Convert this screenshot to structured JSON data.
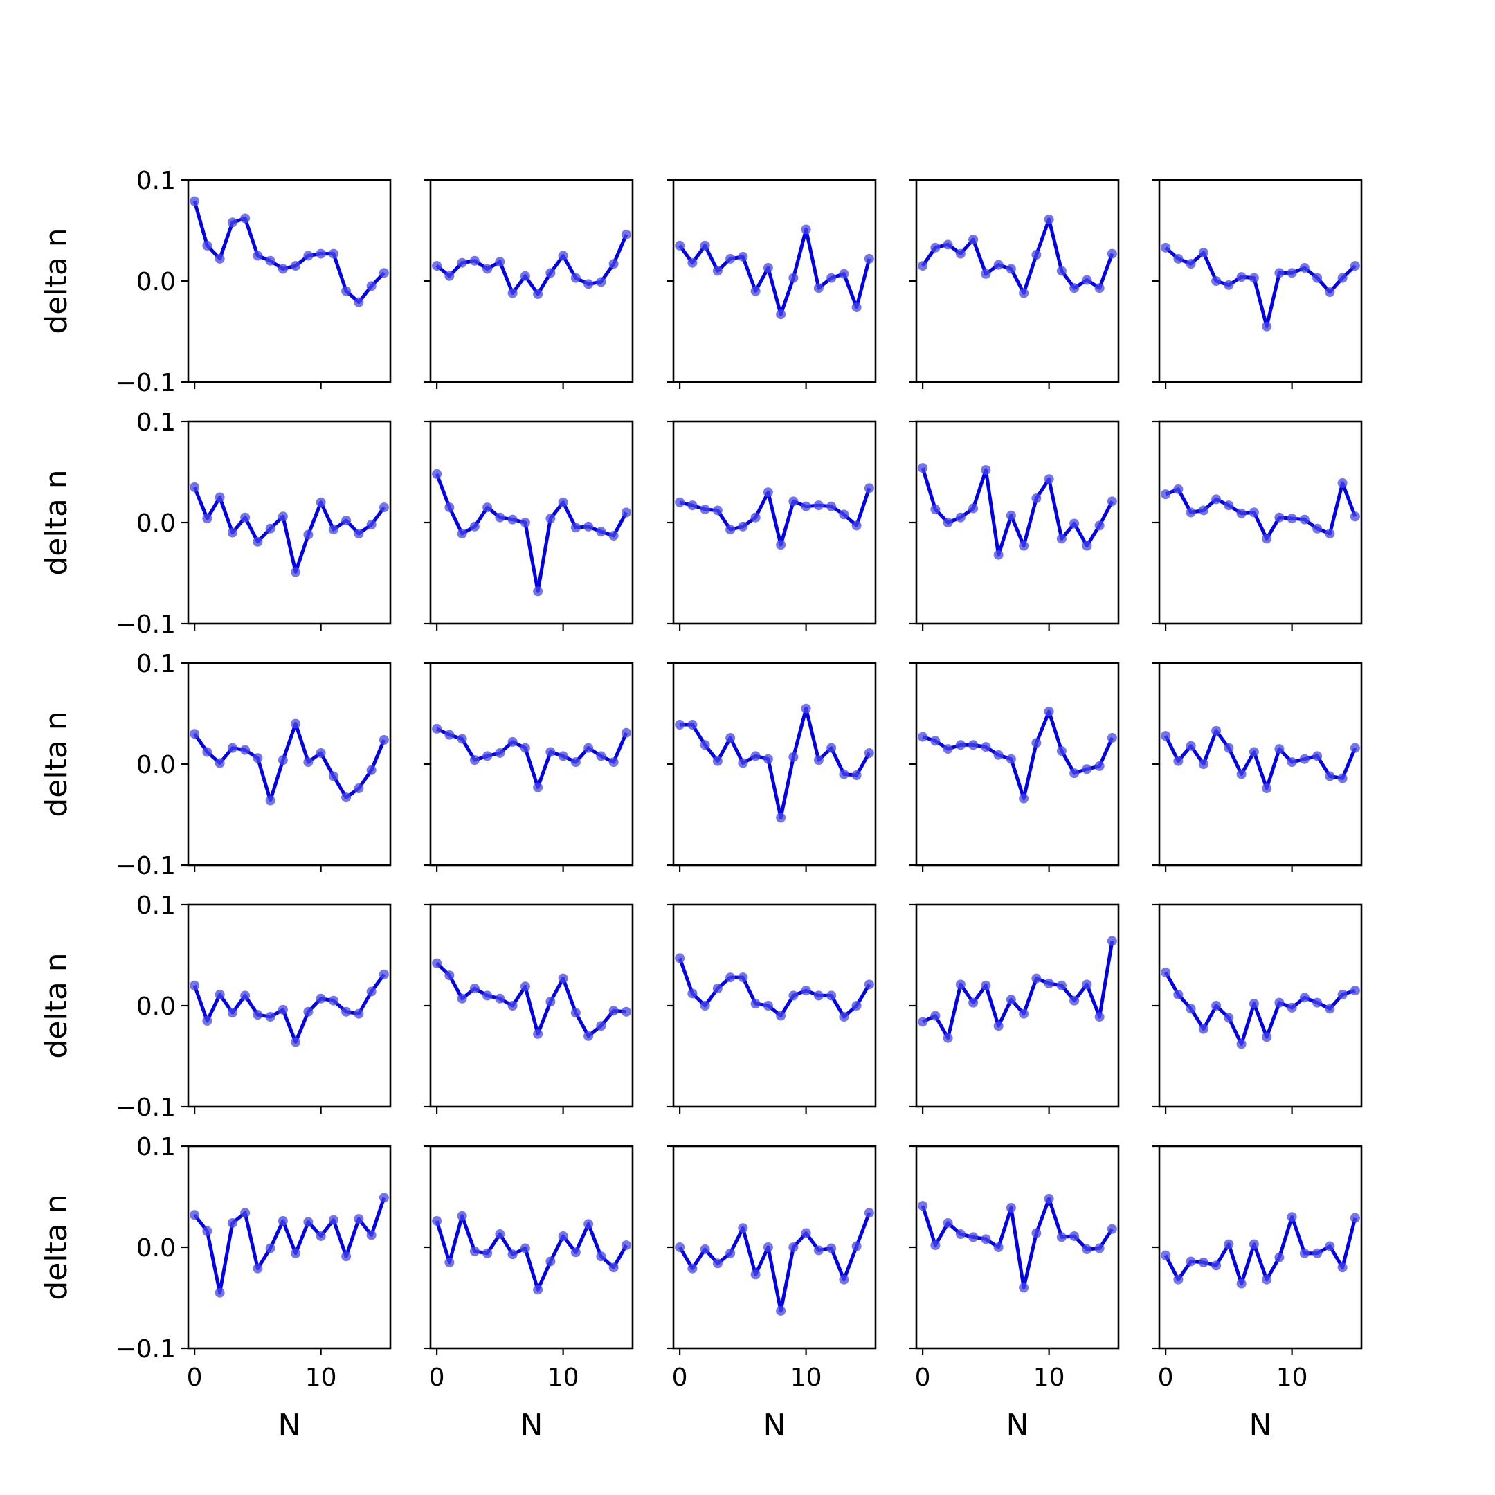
{
  "figure": {
    "rows": 5,
    "cols": 5,
    "line_color": "#0000ee",
    "marker_color": "#4545e6",
    "frame_color": "#000000",
    "background": "#ffffff"
  },
  "chart_data": {
    "type": "line",
    "layout": "5x5 small multiples, shared x and y axes",
    "xlabel": "N",
    "ylabel": "delta n",
    "xlim": [
      -0.5,
      15.5
    ],
    "ylim": [
      -0.1,
      0.1
    ],
    "x_ticks": [
      0,
      10
    ],
    "x_tick_labels": [
      "0",
      "10"
    ],
    "y_ticks": [
      -0.1,
      0.0,
      0.1
    ],
    "y_tick_labels": [
      "−0.1",
      "0.0",
      "0.1"
    ],
    "x": [
      0,
      1,
      2,
      3,
      4,
      5,
      6,
      7,
      8,
      9,
      10,
      11,
      12,
      13,
      14,
      15
    ],
    "grid": false,
    "panels": [
      {
        "row": 0,
        "col": 0,
        "values": [
          0.079,
          0.035,
          0.022,
          0.058,
          0.062,
          0.025,
          0.02,
          0.012,
          0.015,
          0.025,
          0.027,
          0.027,
          -0.01,
          -0.021,
          -0.005,
          0.008
        ]
      },
      {
        "row": 0,
        "col": 1,
        "values": [
          0.015,
          0.005,
          0.018,
          0.02,
          0.012,
          0.019,
          -0.012,
          0.005,
          -0.013,
          0.008,
          0.025,
          0.003,
          -0.003,
          -0.001,
          0.017,
          0.046
        ]
      },
      {
        "row": 0,
        "col": 2,
        "values": [
          0.035,
          0.018,
          0.035,
          0.01,
          0.022,
          0.024,
          -0.01,
          0.013,
          -0.033,
          0.003,
          0.051,
          -0.007,
          0.003,
          0.007,
          -0.026,
          0.022
        ]
      },
      {
        "row": 0,
        "col": 3,
        "values": [
          0.015,
          0.033,
          0.036,
          0.027,
          0.041,
          0.007,
          0.016,
          0.012,
          -0.012,
          0.026,
          0.061,
          0.01,
          -0.007,
          0.001,
          -0.007,
          0.027
        ]
      },
      {
        "row": 0,
        "col": 4,
        "values": [
          0.033,
          0.022,
          0.017,
          0.028,
          0.0,
          -0.004,
          0.004,
          0.003,
          -0.045,
          0.008,
          0.008,
          0.013,
          0.003,
          -0.011,
          0.003,
          0.015
        ]
      },
      {
        "row": 1,
        "col": 0,
        "values": [
          0.035,
          0.004,
          0.025,
          -0.01,
          0.005,
          -0.019,
          -0.006,
          0.006,
          -0.049,
          -0.012,
          0.02,
          -0.007,
          0.002,
          -0.011,
          -0.002,
          0.015
        ]
      },
      {
        "row": 1,
        "col": 1,
        "values": [
          0.048,
          0.015,
          -0.011,
          -0.004,
          0.015,
          0.005,
          0.003,
          0.0,
          -0.068,
          0.004,
          0.02,
          -0.005,
          -0.004,
          -0.009,
          -0.013,
          0.01
        ]
      },
      {
        "row": 1,
        "col": 2,
        "values": [
          0.02,
          0.017,
          0.013,
          0.012,
          -0.007,
          -0.004,
          0.005,
          0.03,
          -0.022,
          0.021,
          0.016,
          0.017,
          0.016,
          0.008,
          -0.003,
          0.034
        ]
      },
      {
        "row": 1,
        "col": 3,
        "values": [
          0.054,
          0.013,
          0.0,
          0.005,
          0.014,
          0.052,
          -0.032,
          0.007,
          -0.023,
          0.024,
          0.043,
          -0.016,
          -0.001,
          -0.023,
          -0.003,
          0.021
        ]
      },
      {
        "row": 1,
        "col": 4,
        "values": [
          0.028,
          0.033,
          0.01,
          0.012,
          0.023,
          0.017,
          0.009,
          0.01,
          -0.016,
          0.005,
          0.004,
          0.003,
          -0.006,
          -0.011,
          0.039,
          0.006
        ]
      },
      {
        "row": 2,
        "col": 0,
        "values": [
          0.03,
          0.012,
          0.001,
          0.016,
          0.014,
          0.006,
          -0.036,
          0.004,
          0.04,
          0.002,
          0.011,
          -0.012,
          -0.033,
          -0.024,
          -0.006,
          0.024
        ]
      },
      {
        "row": 2,
        "col": 1,
        "values": [
          0.035,
          0.029,
          0.025,
          0.004,
          0.008,
          0.011,
          0.022,
          0.016,
          -0.023,
          0.012,
          0.008,
          0.002,
          0.016,
          0.008,
          0.002,
          0.031
        ]
      },
      {
        "row": 2,
        "col": 2,
        "values": [
          0.039,
          0.039,
          0.019,
          0.003,
          0.026,
          0.001,
          0.008,
          0.005,
          -0.053,
          0.007,
          0.055,
          0.004,
          0.016,
          -0.01,
          -0.011,
          0.011
        ]
      },
      {
        "row": 2,
        "col": 3,
        "values": [
          0.027,
          0.023,
          0.015,
          0.019,
          0.019,
          0.017,
          0.009,
          0.005,
          -0.034,
          0.021,
          0.052,
          0.013,
          -0.009,
          -0.005,
          -0.002,
          0.026
        ]
      },
      {
        "row": 2,
        "col": 4,
        "values": [
          0.028,
          0.003,
          0.018,
          0.0,
          0.033,
          0.016,
          -0.01,
          0.012,
          -0.024,
          0.015,
          0.002,
          0.005,
          0.008,
          -0.012,
          -0.014,
          0.016
        ]
      },
      {
        "row": 3,
        "col": 0,
        "values": [
          0.02,
          -0.015,
          0.011,
          -0.007,
          0.01,
          -0.009,
          -0.011,
          -0.004,
          -0.036,
          -0.006,
          0.007,
          0.005,
          -0.006,
          -0.008,
          0.014,
          0.031
        ]
      },
      {
        "row": 3,
        "col": 1,
        "values": [
          0.042,
          0.03,
          0.007,
          0.017,
          0.01,
          0.007,
          0.0,
          0.019,
          -0.028,
          0.004,
          0.027,
          -0.007,
          -0.03,
          -0.02,
          -0.005,
          -0.006
        ]
      },
      {
        "row": 3,
        "col": 2,
        "values": [
          0.047,
          0.012,
          0.0,
          0.017,
          0.028,
          0.028,
          0.002,
          0.0,
          -0.01,
          0.01,
          0.015,
          0.01,
          0.01,
          -0.011,
          0.0,
          0.021
        ]
      },
      {
        "row": 3,
        "col": 3,
        "values": [
          -0.016,
          -0.01,
          -0.032,
          0.021,
          0.003,
          0.02,
          -0.02,
          0.006,
          -0.008,
          0.027,
          0.022,
          0.02,
          0.005,
          0.021,
          -0.011,
          0.064
        ]
      },
      {
        "row": 3,
        "col": 4,
        "values": [
          0.033,
          0.011,
          -0.003,
          -0.023,
          0.0,
          -0.012,
          -0.038,
          0.002,
          -0.031,
          0.003,
          -0.002,
          0.008,
          0.003,
          -0.003,
          0.011,
          0.015
        ]
      },
      {
        "row": 4,
        "col": 0,
        "values": [
          0.032,
          0.016,
          -0.045,
          0.024,
          0.034,
          -0.021,
          -0.001,
          0.026,
          -0.006,
          0.025,
          0.011,
          0.027,
          -0.009,
          0.028,
          0.012,
          0.049
        ]
      },
      {
        "row": 4,
        "col": 1,
        "values": [
          0.026,
          -0.015,
          0.031,
          -0.004,
          -0.006,
          0.013,
          -0.007,
          -0.001,
          -0.042,
          -0.014,
          0.011,
          -0.005,
          0.023,
          -0.009,
          -0.02,
          0.002
        ]
      },
      {
        "row": 4,
        "col": 2,
        "values": [
          0.0,
          -0.021,
          -0.002,
          -0.016,
          -0.006,
          0.019,
          -0.027,
          0.0,
          -0.063,
          0.0,
          0.014,
          -0.003,
          -0.001,
          -0.032,
          0.001,
          0.034
        ]
      },
      {
        "row": 4,
        "col": 3,
        "values": [
          0.041,
          0.002,
          0.024,
          0.013,
          0.01,
          0.008,
          0.0,
          0.039,
          -0.04,
          0.014,
          0.048,
          0.01,
          0.011,
          -0.002,
          -0.001,
          0.018
        ]
      },
      {
        "row": 4,
        "col": 4,
        "values": [
          -0.008,
          -0.032,
          -0.014,
          -0.015,
          -0.018,
          0.003,
          -0.036,
          0.003,
          -0.032,
          -0.01,
          0.03,
          -0.006,
          -0.006,
          0.001,
          -0.02,
          0.029
        ]
      }
    ]
  }
}
